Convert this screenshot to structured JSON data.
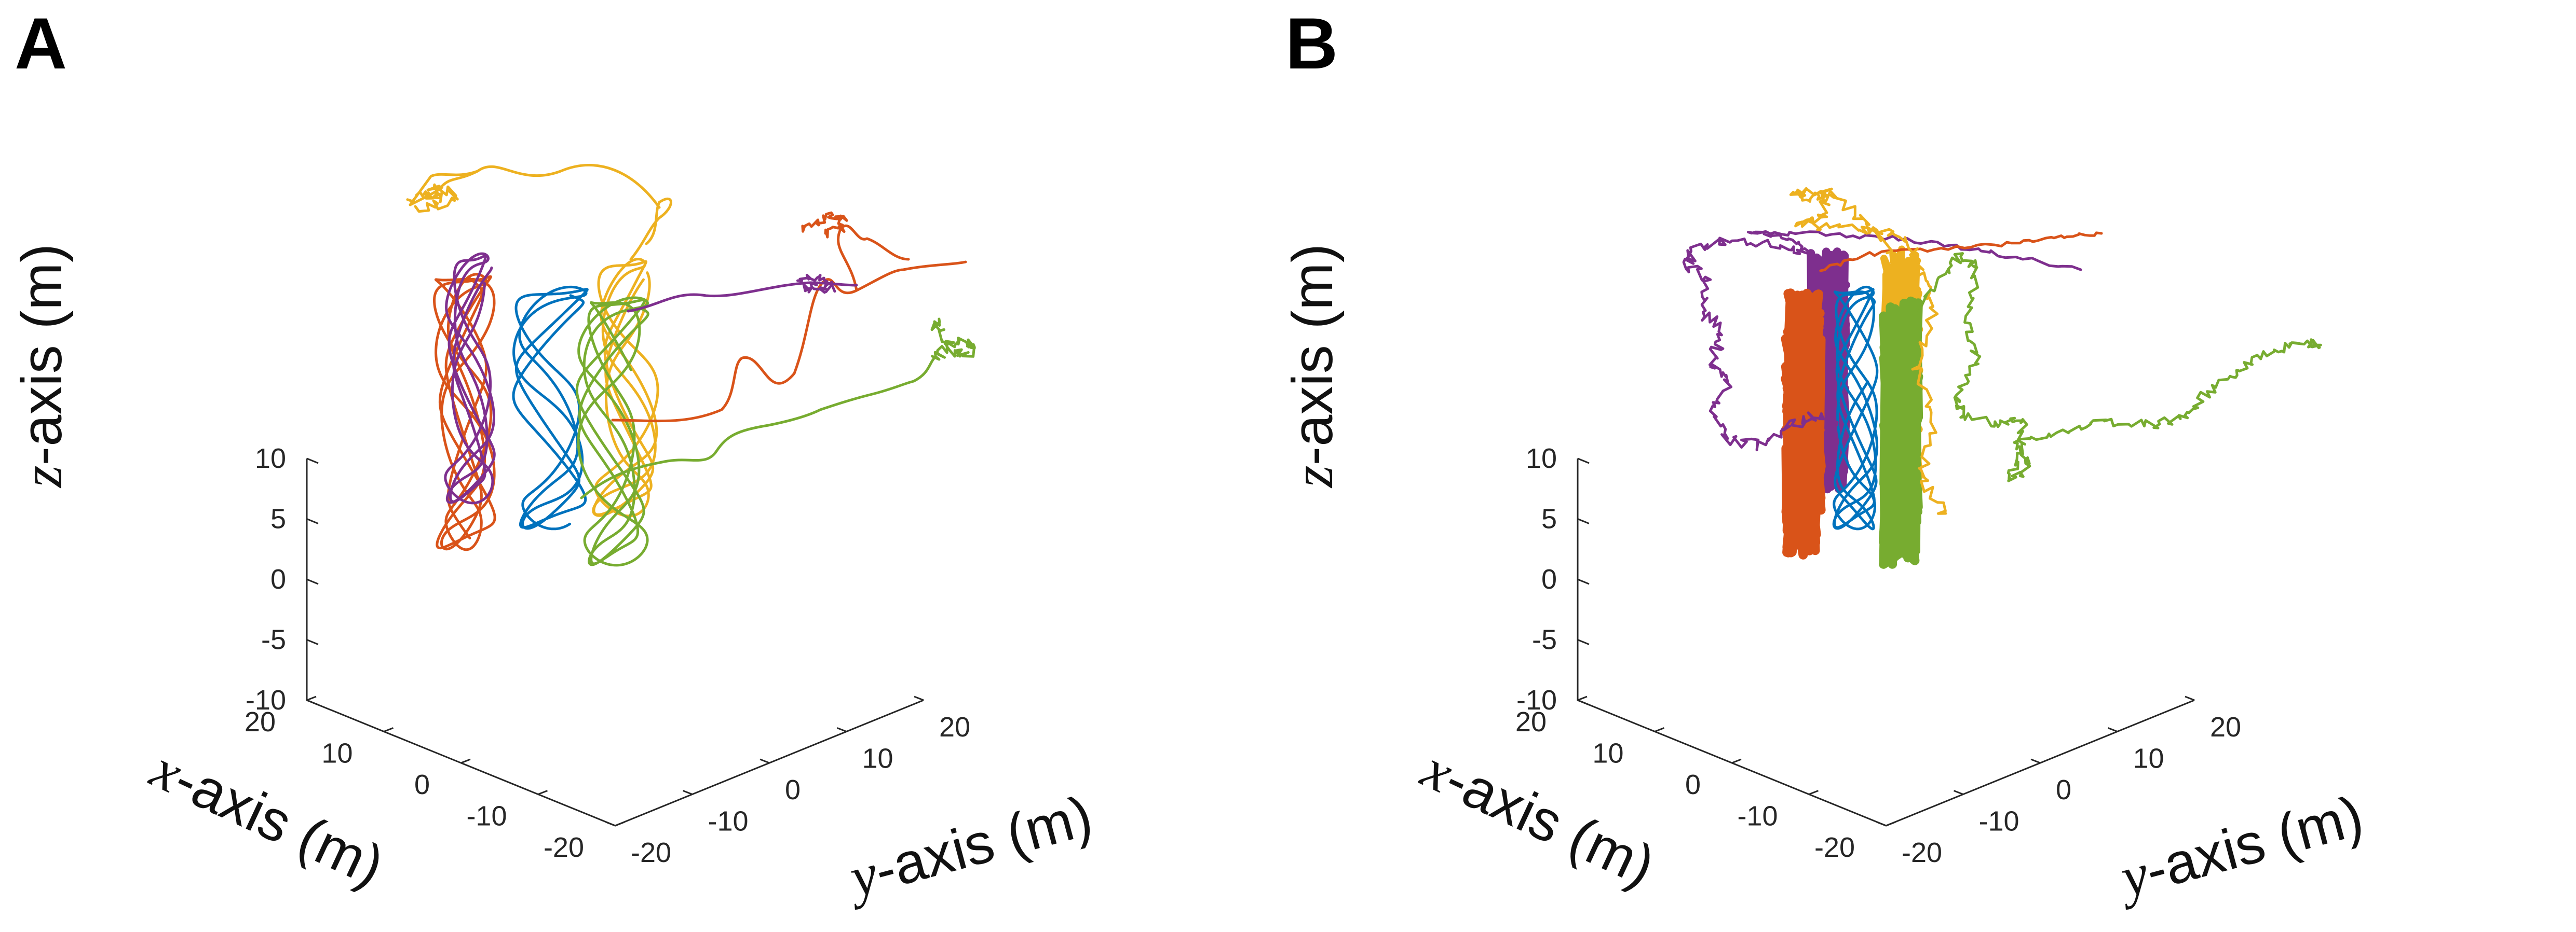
{
  "chart_data": [
    {
      "panel": "A",
      "type": "line",
      "title": "",
      "xlabel": "x-axis (m)",
      "ylabel": "y-axis (m)",
      "zlabel": "z-axis (m)",
      "x_var": "x",
      "y_var": "y",
      "z_var": "z",
      "label_suffix": "-axis (m)",
      "xlim": [
        -20,
        20
      ],
      "ylim": [
        -20,
        20
      ],
      "zlim": [
        -10,
        10
      ],
      "xticks": [
        "20",
        "10",
        "0",
        "-10",
        "-20"
      ],
      "yticks": [
        "-20",
        "-10",
        "0",
        "10",
        "20"
      ],
      "zticks": [
        "10",
        "5",
        "0",
        "-5",
        "-10"
      ],
      "series": [
        {
          "name": "blue",
          "color": "#0072BD",
          "description": "helical orbit around column, no escape"
        },
        {
          "name": "orange",
          "color": "#D95319",
          "description": "helical orbit then escape to upper right"
        },
        {
          "name": "yellow",
          "color": "#EDB120",
          "description": "helical orbit then escape upward"
        },
        {
          "name": "purple",
          "color": "#7E2F8E",
          "description": "helical orbit then escape to the right"
        },
        {
          "name": "green",
          "color": "#77AC30",
          "description": "helical orbit then escape to lower right"
        }
      ]
    },
    {
      "panel": "B",
      "type": "line",
      "title": "",
      "xlabel": "x-axis (m)",
      "ylabel": "y-axis (m)",
      "zlabel": "z-axis (m)",
      "x_var": "x",
      "y_var": "y",
      "z_var": "z",
      "label_suffix": "-axis (m)",
      "xlim": [
        -20,
        20
      ],
      "ylim": [
        -20,
        20
      ],
      "zlim": [
        -10,
        10
      ],
      "xticks": [
        "20",
        "10",
        "0",
        "-10",
        "-20"
      ],
      "yticks": [
        "-20",
        "-10",
        "0",
        "10",
        "20"
      ],
      "zticks": [
        "10",
        "5",
        "0",
        "-5",
        "-10"
      ],
      "series": [
        {
          "name": "blue",
          "color": "#0072BD",
          "description": "helical orbit around column"
        },
        {
          "name": "orange",
          "color": "#D95319",
          "description": "dense noisy column then escape"
        },
        {
          "name": "yellow",
          "color": "#EDB120",
          "description": "dense noisy column then escape"
        },
        {
          "name": "purple",
          "color": "#7E2F8E",
          "description": "dense noisy column then escape"
        },
        {
          "name": "green",
          "color": "#77AC30",
          "description": "dense noisy column then escape"
        }
      ]
    }
  ]
}
